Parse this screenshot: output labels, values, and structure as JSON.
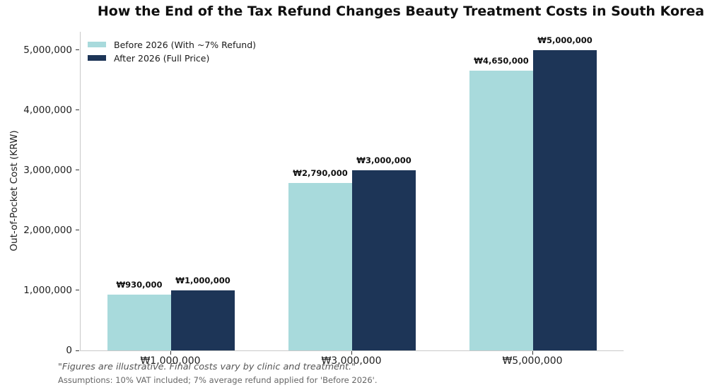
{
  "title": "How the End of the Tax Refund Changes Beauty Treatment Costs in South Korea",
  "footnotes": {
    "primary": "\"Figures are illustrative. Final costs vary by clinic and treatment.\"",
    "secondary": "Assumptions: 10% VAT included; 7% average refund applied for 'Before 2026'."
  },
  "colors": {
    "before_series": "#A8DADC",
    "after_series": "#1D3557",
    "axis_line": "#C9C9C9",
    "tick_text": "#1F1F1F",
    "value_label_text": "#111111",
    "footnote_text": "#555555",
    "background": "#FFFFFF"
  },
  "chart_data": {
    "type": "bar",
    "title": "How the End of the Tax Refund Changes Beauty Treatment Costs in South Korea",
    "xlabel": "",
    "ylabel": "Out-of-Pocket Cost (KRW)",
    "categories": [
      "₩1,000,000",
      "₩3,000,000",
      "₩5,000,000"
    ],
    "series": [
      {
        "name": "Before 2026 (With ~7% Refund)",
        "color": "#A8DADC",
        "values": [
          930000,
          2790000,
          4650000
        ],
        "labels": [
          "₩930,000",
          "₩2,790,000",
          "₩4,650,000"
        ]
      },
      {
        "name": "After 2026 (Full Price)",
        "color": "#1D3557",
        "values": [
          1000000,
          3000000,
          5000000
        ],
        "labels": [
          "₩1,000,000",
          "₩3,000,000",
          "₩5,000,000"
        ]
      }
    ],
    "ylim": [
      0,
      5300000
    ],
    "yticks": [
      0,
      1000000,
      2000000,
      3000000,
      4000000,
      5000000
    ],
    "ytick_labels": [
      "0",
      "1,000,000",
      "2,000,000",
      "3,000,000",
      "4,000,000",
      "5,000,000"
    ],
    "legend_position": "upper left",
    "grid": false,
    "bar_value_labels_shown": true
  }
}
